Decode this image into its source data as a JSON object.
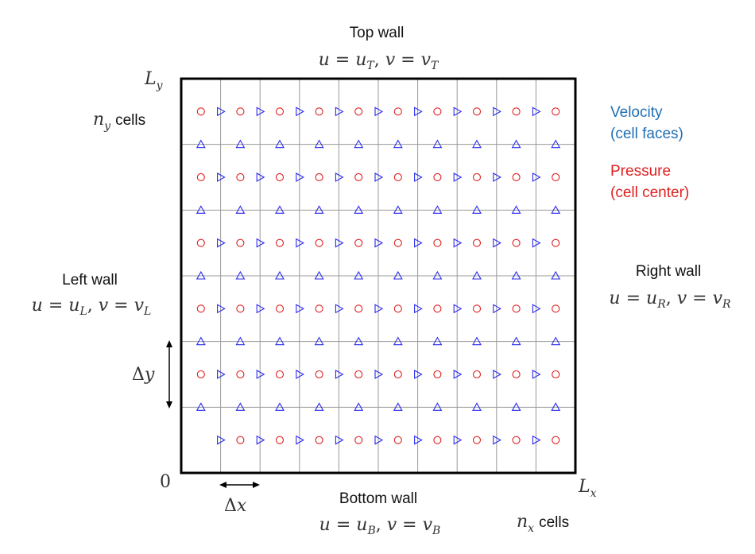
{
  "labels": {
    "top_wall": "Top wall",
    "bottom_wall": "Bottom wall",
    "left_wall": "Left wall",
    "right_wall": "Right wall",
    "velocity_line1": "Velocity",
    "velocity_line2": "(cell faces)",
    "pressure_line1": "Pressure",
    "pressure_line2": "(cell center)",
    "ny_cells_word": "cells",
    "nx_cells_word": "cells",
    "origin": "0"
  },
  "math": {
    "top_bc": "u = u_T, v = v_T",
    "bottom_bc": "u = u_B, v = v_B",
    "left_bc": "u = u_L, v = v_L",
    "right_bc": "u = u_R, v = v_R",
    "Ly": "L_y",
    "Lx": "L_x",
    "ny": "n_y",
    "nx": "n_x",
    "dy": "Δy",
    "dx": "Δx"
  },
  "colors": {
    "velocity": "#1f6fb5",
    "pressure": "#e02020",
    "u_marker": "#2a2aee",
    "v_marker": "#2a2aee",
    "p_marker": "#e02020",
    "grid": "#999999"
  },
  "grid": {
    "nx_cells": 10,
    "ny_cells": 6
  }
}
